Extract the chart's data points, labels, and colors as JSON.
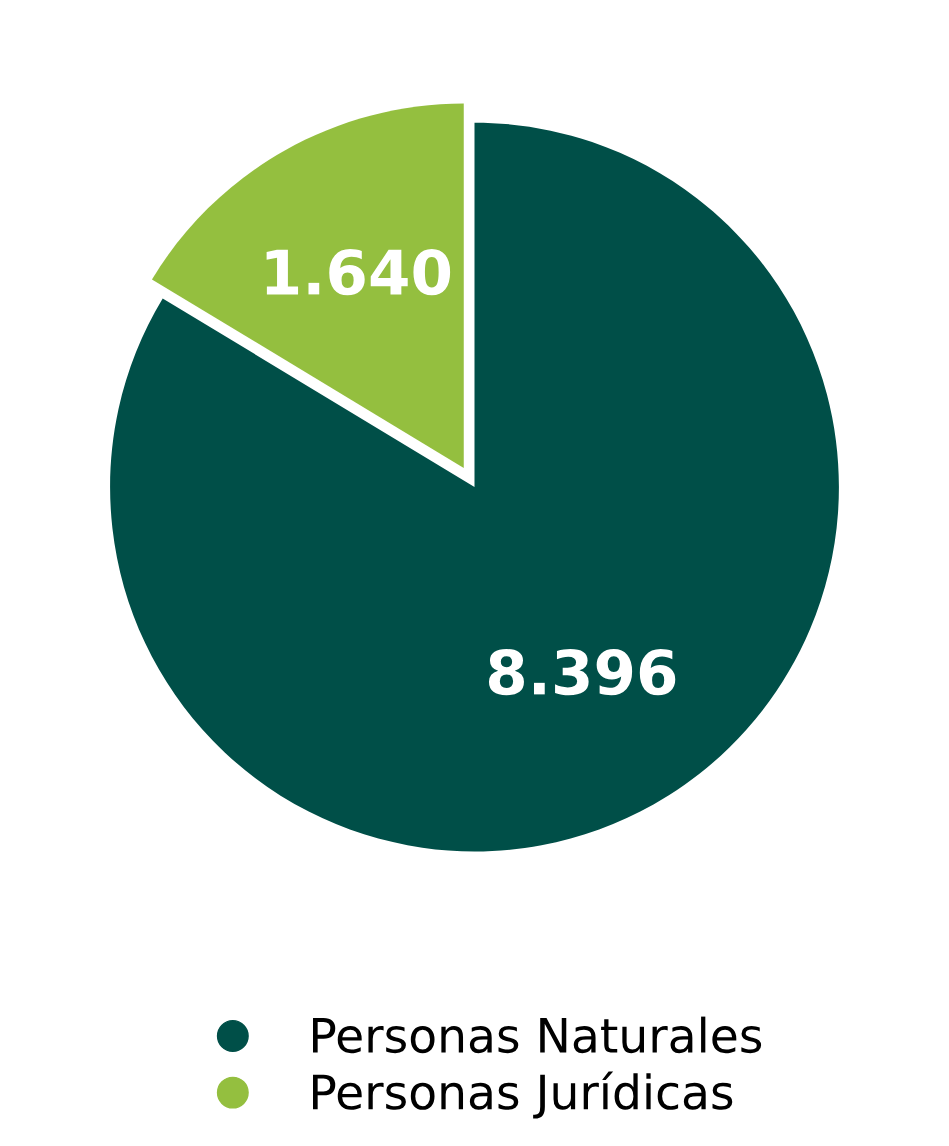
{
  "chart_data": {
    "type": "pie",
    "categories": [
      "Personas Naturales",
      "Personas Jurídicas"
    ],
    "values": [
      8396,
      1640
    ],
    "value_labels": [
      "8.396",
      "1.640"
    ],
    "colors": [
      "#004f48",
      "#94bf3f"
    ],
    "legend": "bottom"
  }
}
